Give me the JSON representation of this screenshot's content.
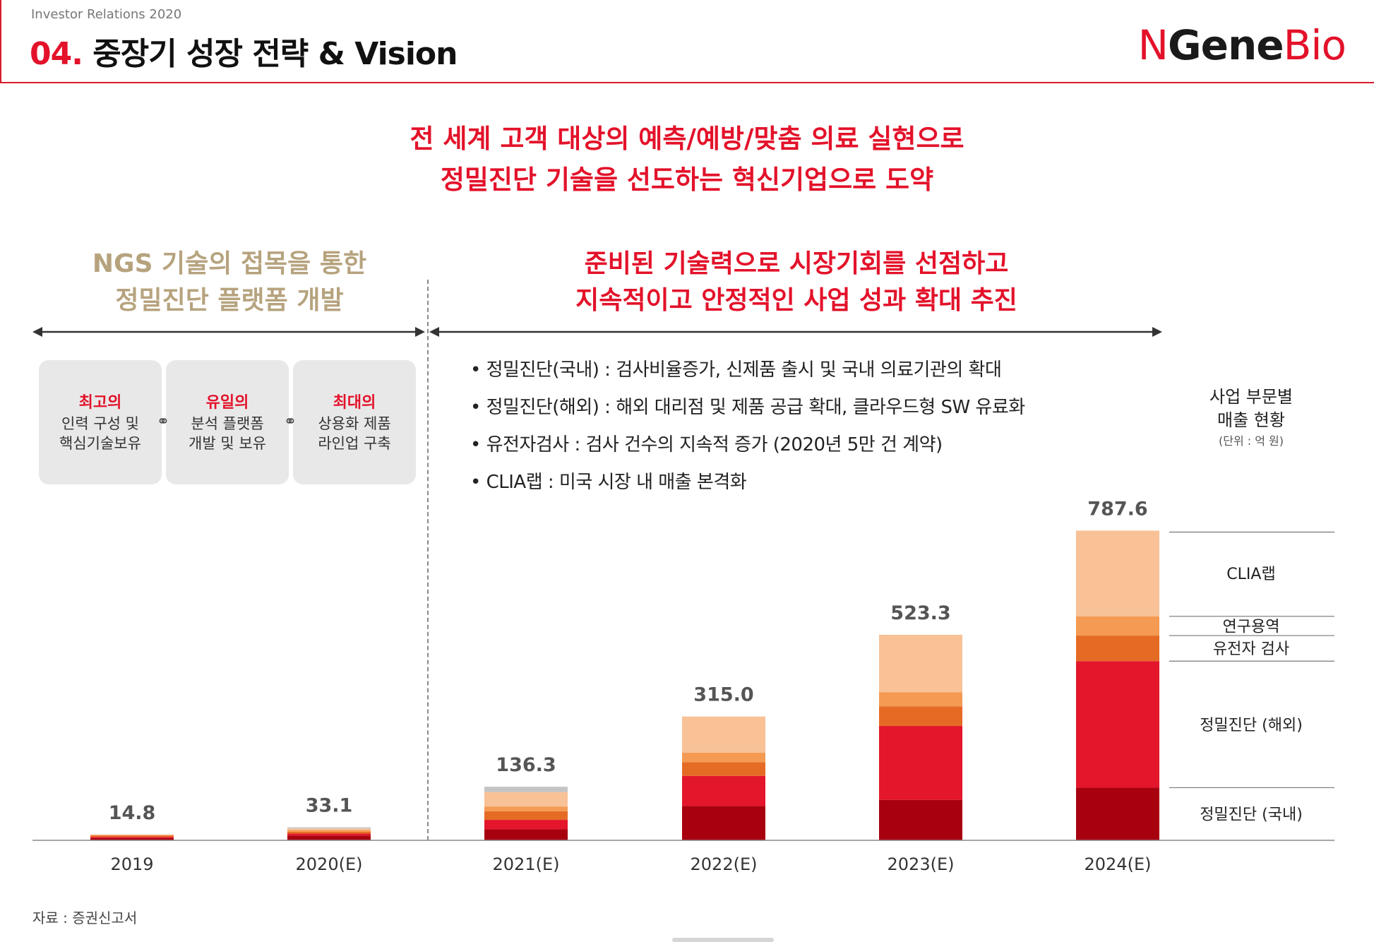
{
  "header": {
    "brand": "Investor Relations 2020",
    "section_number": "04.",
    "section_title": "중장기 성장 전략 & Vision",
    "logo": {
      "part1": "N",
      "part2": "Gene",
      "part3": "Bio"
    }
  },
  "vision": {
    "line1": "전 세계 고객 대상의 예측/예방/맞춤 의료 실현으로",
    "line2": "정밀진단 기술을 선도하는 혁신기업으로 도약"
  },
  "left_phase": {
    "line1": "NGS 기술의 접목을 통한",
    "line2": "정밀진단 플랫폼 개발",
    "boxes": [
      {
        "title": "최고의",
        "line1": "인력 구성 및",
        "line2": "핵심기술보유"
      },
      {
        "title": "유일의",
        "line1": "분석 플랫폼",
        "line2": "개발 및 보유"
      },
      {
        "title": "최대의",
        "line1": "상용화 제품",
        "line2": "라인업 구축"
      }
    ],
    "link_glyph": "⚭"
  },
  "right_phase": {
    "line1": "준비된 기술력으로 시장기회를 선점하고",
    "line2": "지속적이고 안정적인 사업 성과 확대 추진",
    "bullets": [
      "• 정밀진단(국내) : 검사비율증가, 신제품 출시 및 국내 의료기관의 확대",
      "• 정밀진단(해외) : 해외 대리점 및 제품 공급 확대, 클라우드형 SW 유료화",
      "• 유전자검사 : 검사 건수의 지속적 증가 (2020년 5만 건 계약)",
      "• CLIA랩 : 미국 시장 내 매출 본격화"
    ]
  },
  "legend": {
    "title_line1": "사업 부문별",
    "title_line2": "매출 현황",
    "unit": "(단위 : 억 원)",
    "items": [
      "CLIA랩",
      "연구용역",
      "유전자 검사",
      "정밀진단 (해외)",
      "정밀진단 (국내)"
    ]
  },
  "footnote": "자료 : 증권신고서",
  "colors": {
    "accent": "#e3122a",
    "gold": "#b6a37e",
    "domestic": "#a8000f",
    "overseas": "#e3162b",
    "genetic": "#e56b25",
    "research": "#f49a52",
    "clia": "#f8c196",
    "other": "#c4c4c4"
  },
  "chart_data": {
    "type": "bar",
    "stacked": true,
    "categories": [
      "2019",
      "2020(E)",
      "2021(E)",
      "2022(E)",
      "2023(E)",
      "2024(E)"
    ],
    "totals": [
      14.8,
      33.1,
      136.3,
      315.0,
      523.3,
      787.6
    ],
    "total_labels": [
      "14.8",
      "33.1",
      "136.3",
      "315.0",
      "523.3",
      "787.6"
    ],
    "series": [
      {
        "name": "정밀진단 (국내)",
        "values": [
          5.6,
          12,
          28,
          87,
          103,
          134
        ]
      },
      {
        "name": "정밀진단 (해외)",
        "values": [
          3.2,
          5,
          24,
          77,
          188,
          322
        ]
      },
      {
        "name": "유전자 검사",
        "values": [
          3,
          5,
          22,
          35,
          50,
          65
        ]
      },
      {
        "name": "연구용역",
        "values": [
          2,
          4,
          12,
          24,
          36,
          49
        ]
      },
      {
        "name": "CLIA랩",
        "values": [
          1,
          4,
          37,
          92,
          146,
          218
        ]
      },
      {
        "values": [
          0,
          3.1,
          13.3,
          0,
          0,
          0
        ]
      }
    ],
    "ylim": [
      0,
      800
    ],
    "grid": false,
    "legend_position": "right"
  }
}
